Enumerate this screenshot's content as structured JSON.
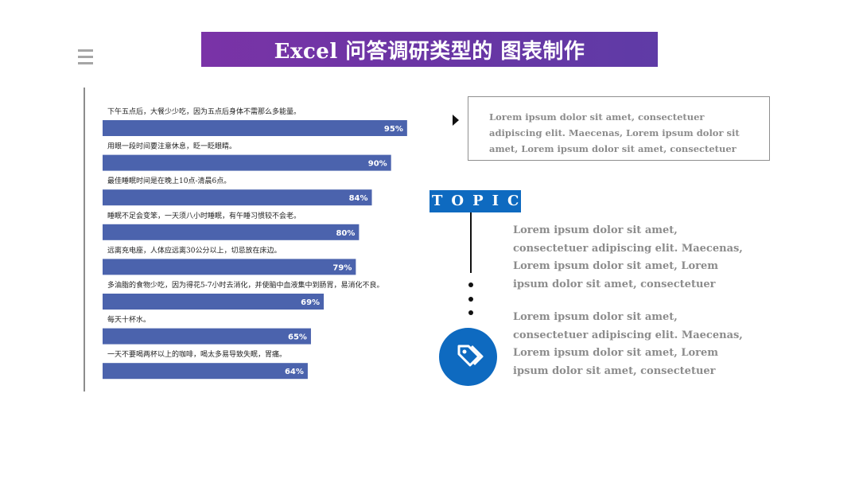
{
  "header": {
    "title": "Excel 问答调研类型的 图表制作"
  },
  "icons": {
    "menu": "menu-icon",
    "arrow": "caret-right-icon",
    "tag": "tag-icon"
  },
  "colors": {
    "bar": "#4b63ad",
    "title_gradient_start": "#7a33a7",
    "title_gradient_end": "#5f3ba6",
    "accent": "#0e6ac0",
    "muted_text": "#8c8c8c"
  },
  "chart_data": {
    "type": "bar",
    "orientation": "horizontal",
    "categories": [
      "下午五点后，大餐少少吃，因为五点后身体不需那么多能量。",
      "用眼一段时间要注意休息，眨一眨眼睛。",
      "最佳睡眠时间是在晚上10点-清晨6点。",
      "睡眠不足会变笨，一天须八小时睡眠，有午睡习惯较不会老。",
      "远离充电座，人体应远离30公分以上，切忌放在床边。",
      "多油脂的食物少吃，因为得花5-7小时去消化，并使脑中血液集中到肠胃，易消化不良。",
      "每天十杯水。",
      "一天不要喝两杯以上的咖啡，喝太多易导致失眠，胃痛。"
    ],
    "values": [
      95,
      90,
      84,
      80,
      79,
      69,
      65,
      64
    ],
    "value_labels": [
      "95%",
      "90%",
      "84%",
      "80%",
      "79%",
      "69%",
      "65%",
      "64%"
    ],
    "xlim": [
      0,
      100
    ],
    "unit": "%",
    "grid": false,
    "legend": "none"
  },
  "side_panel": {
    "box_text": "Lorem ipsum dolor sit amet, consectetuer adipiscing elit. Maecenas,  Lorem ipsum dolor sit amet, Lorem ipsum dolor sit amet, consectetuer",
    "topic_label": "TOPIC",
    "paragraphs": [
      "Lorem ipsum dolor sit amet, consectetuer adipiscing elit. Maecenas,  Lorem ipsum dolor sit amet, Lorem ipsum dolor sit amet, consectetuer",
      "Lorem ipsum dolor sit amet, consectetuer adipiscing elit. Maecenas,  Lorem ipsum dolor sit amet, Lorem ipsum dolor sit amet, consectetuer"
    ]
  }
}
